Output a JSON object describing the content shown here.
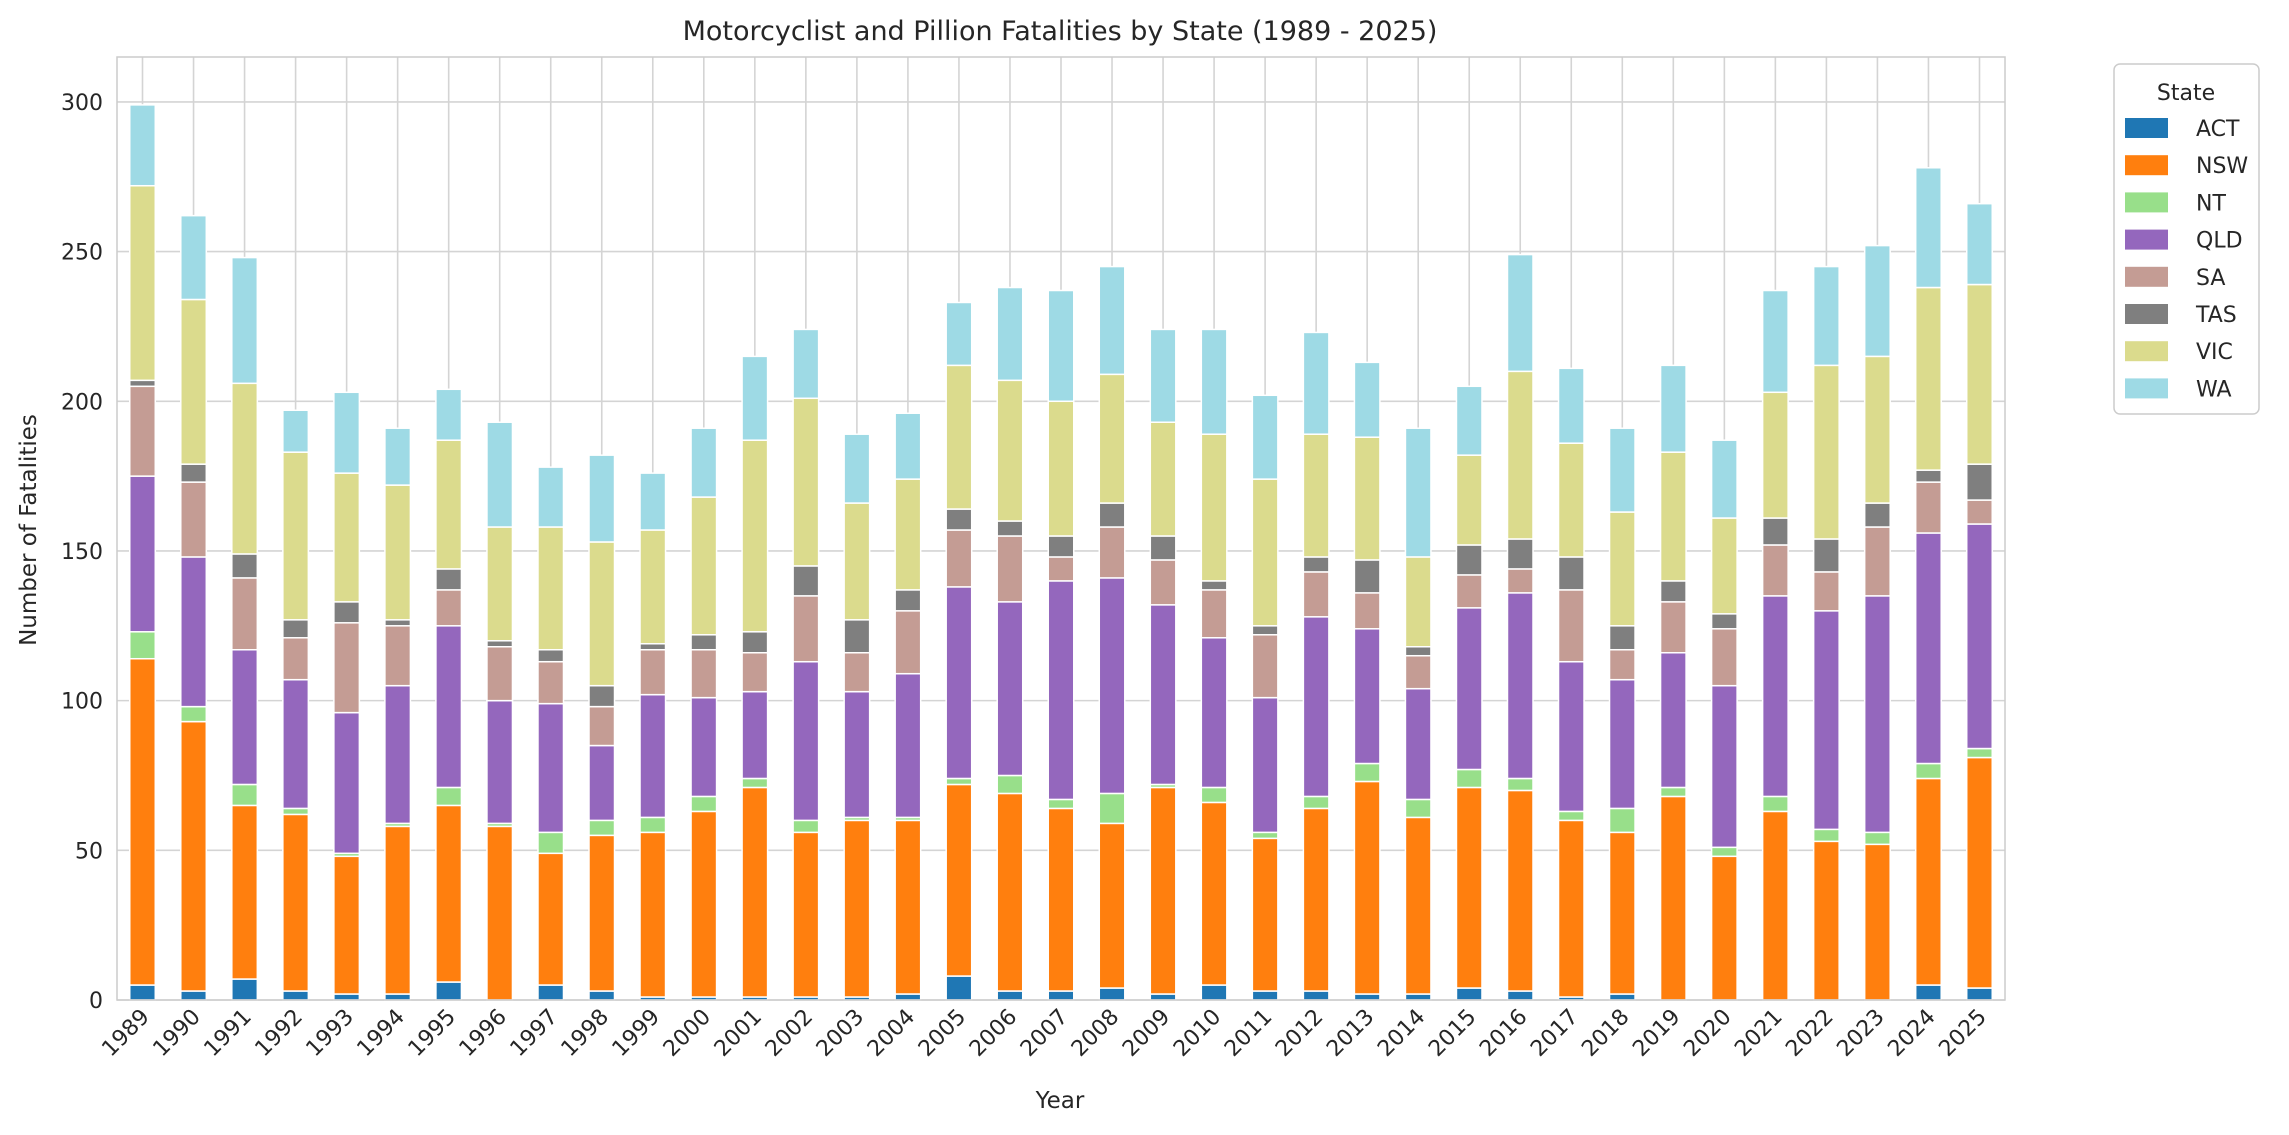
{
  "chart_data": {
    "type": "bar",
    "stacked": true,
    "title": "Motorcyclist and Pillion Fatalities by State (1989 - 2025)",
    "xlabel": "Year",
    "ylabel": "Number of Fatalities",
    "ylim": [
      0,
      315
    ],
    "yticks": [
      0,
      50,
      100,
      150,
      200,
      250,
      300
    ],
    "grid": true,
    "legend_title": "State",
    "legend_position": "outside-top-right",
    "categories": [
      "1989",
      "1990",
      "1991",
      "1992",
      "1993",
      "1994",
      "1995",
      "1996",
      "1997",
      "1998",
      "1999",
      "2000",
      "2001",
      "2002",
      "2003",
      "2004",
      "2005",
      "2006",
      "2007",
      "2008",
      "2009",
      "2010",
      "2011",
      "2012",
      "2013",
      "2014",
      "2015",
      "2016",
      "2017",
      "2018",
      "2019",
      "2020",
      "2021",
      "2022",
      "2023",
      "2024",
      "2025"
    ],
    "series": [
      {
        "name": "ACT",
        "color": "#1f77b4",
        "values": [
          5,
          3,
          7,
          3,
          2,
          2,
          6,
          0,
          5,
          3,
          1,
          1,
          1,
          1,
          1,
          2,
          8,
          3,
          3,
          4,
          2,
          5,
          3,
          3,
          2,
          2,
          4,
          3,
          1,
          2,
          0,
          0,
          0,
          0,
          0,
          5,
          4
        ]
      },
      {
        "name": "NSW",
        "color": "#ff7f0e",
        "values": [
          109,
          90,
          58,
          59,
          46,
          56,
          59,
          58,
          44,
          52,
          55,
          62,
          70,
          55,
          59,
          58,
          64,
          66,
          61,
          55,
          69,
          61,
          51,
          61,
          71,
          59,
          67,
          67,
          59,
          54,
          68,
          48,
          63,
          53,
          52,
          69,
          77
        ]
      },
      {
        "name": "NT",
        "color": "#98df8a",
        "values": [
          9,
          5,
          7,
          2,
          1,
          1,
          6,
          1,
          7,
          5,
          5,
          5,
          3,
          4,
          1,
          1,
          2,
          6,
          3,
          10,
          1,
          5,
          2,
          4,
          6,
          6,
          6,
          4,
          3,
          8,
          3,
          3,
          5,
          4,
          4,
          5,
          3
        ]
      },
      {
        "name": "QLD",
        "color": "#9467bd",
        "values": [
          52,
          50,
          45,
          43,
          47,
          46,
          54,
          41,
          43,
          25,
          41,
          33,
          29,
          53,
          42,
          48,
          64,
          58,
          73,
          72,
          60,
          50,
          45,
          60,
          45,
          37,
          54,
          62,
          50,
          43,
          45,
          54,
          67,
          73,
          79,
          77,
          75
        ]
      },
      {
        "name": "SA",
        "color": "#c49c94",
        "values": [
          30,
          25,
          24,
          14,
          30,
          20,
          12,
          18,
          14,
          13,
          15,
          16,
          13,
          22,
          13,
          21,
          19,
          22,
          8,
          17,
          15,
          16,
          21,
          15,
          12,
          11,
          11,
          8,
          24,
          10,
          17,
          19,
          17,
          13,
          23,
          17,
          8
        ]
      },
      {
        "name": "TAS",
        "color": "#7f7f7f",
        "values": [
          2,
          6,
          8,
          6,
          7,
          2,
          7,
          2,
          4,
          7,
          2,
          5,
          7,
          10,
          11,
          7,
          7,
          5,
          7,
          8,
          8,
          3,
          3,
          5,
          11,
          3,
          10,
          10,
          11,
          8,
          7,
          5,
          9,
          11,
          8,
          4,
          12
        ]
      },
      {
        "name": "VIC",
        "color": "#dbdb8d",
        "values": [
          65,
          55,
          57,
          56,
          43,
          45,
          43,
          38,
          41,
          48,
          38,
          46,
          64,
          56,
          39,
          37,
          48,
          47,
          45,
          43,
          38,
          49,
          49,
          41,
          41,
          30,
          30,
          56,
          38,
          38,
          43,
          32,
          42,
          58,
          49,
          61,
          60
        ]
      },
      {
        "name": "WA",
        "color": "#9edae5",
        "values": [
          27,
          28,
          42,
          14,
          27,
          19,
          17,
          35,
          20,
          29,
          19,
          23,
          28,
          23,
          23,
          22,
          21,
          31,
          37,
          36,
          31,
          35,
          28,
          34,
          25,
          43,
          23,
          39,
          25,
          28,
          29,
          26,
          34,
          33,
          37,
          40,
          27
        ]
      }
    ]
  }
}
